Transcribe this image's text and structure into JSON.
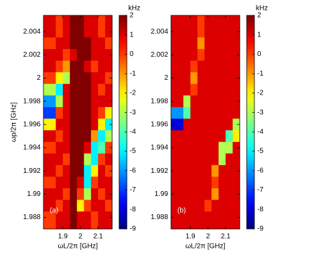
{
  "chart_data": [
    {
      "type": "heatmap",
      "panel_label": "(a)",
      "xlabel": "ωL/2π [GHz]",
      "ylabel": "ωp/2π [GHz]",
      "colorbar_label": "kHz",
      "colormap": "jet",
      "x": [
        1.84,
        1.88,
        1.92,
        1.96,
        2.0,
        2.04,
        2.08,
        2.12,
        2.16
      ],
      "y": [
        2.004,
        2.003,
        2.002,
        2.001,
        2.0,
        1.999,
        1.998,
        1.997,
        1.996,
        1.995,
        1.994,
        1.993,
        1.992,
        1.991,
        1.99,
        1.989,
        1.988
      ],
      "z": [
        [
          1,
          0,
          1,
          2,
          2,
          1,
          1,
          0,
          1
        ],
        [
          0,
          1,
          1,
          2,
          2,
          2,
          1,
          1,
          0
        ],
        [
          1,
          1,
          0,
          1,
          2,
          2,
          1,
          1,
          1
        ],
        [
          1,
          0,
          -1,
          2,
          2,
          1,
          0,
          1,
          1
        ],
        [
          0,
          -2,
          -3,
          2,
          2,
          2,
          1,
          1,
          0
        ],
        [
          -3,
          -5,
          1,
          2,
          2,
          2,
          1,
          0,
          1
        ],
        [
          -6,
          -3,
          1,
          2,
          2,
          2,
          1,
          1,
          1
        ],
        [
          -7,
          0,
          1,
          2,
          2,
          2,
          1,
          0,
          -2
        ],
        [
          -2,
          1,
          1,
          2,
          2,
          2,
          1,
          -2,
          -5
        ],
        [
          1,
          0,
          1,
          2,
          2,
          2,
          -1,
          -5,
          -3
        ],
        [
          0,
          1,
          1,
          2,
          2,
          1,
          -5,
          -4,
          0
        ],
        [
          1,
          1,
          0,
          2,
          2,
          -3,
          -5,
          0,
          1
        ],
        [
          1,
          0,
          1,
          2,
          2,
          -5,
          -2,
          1,
          0
        ],
        [
          0,
          1,
          1,
          2,
          1,
          -5,
          0,
          1,
          1
        ],
        [
          1,
          1,
          0,
          2,
          0,
          -3,
          1,
          0,
          1
        ],
        [
          1,
          0,
          1,
          2,
          -2,
          0,
          1,
          1,
          0
        ],
        [
          0,
          1,
          1,
          2,
          1,
          1,
          0,
          1,
          1
        ]
      ],
      "xlim": [
        1.79,
        2.18
      ],
      "ylim": [
        1.987,
        2.0054
      ],
      "xticks": [
        1.9,
        2,
        2.1
      ],
      "yticks": [
        2.004,
        2.002,
        2,
        1.998,
        1.996,
        1.994,
        1.992,
        1.99,
        1.988
      ],
      "clim": [
        -9,
        2
      ],
      "cticks": [
        2,
        1,
        0,
        -1,
        -2,
        -3,
        -4,
        -5,
        -6,
        -7,
        -8,
        -9
      ]
    },
    {
      "type": "heatmap",
      "panel_label": "(b)",
      "xlabel": "ωL/2π [GHz]",
      "colorbar_label": "kHz",
      "colormap": "jet",
      "x": [
        1.84,
        1.88,
        1.92,
        1.96,
        2.0,
        2.04,
        2.08,
        2.12,
        2.16
      ],
      "y": [
        2.004,
        2.003,
        2.002,
        2.001,
        2.0,
        1.999,
        1.998,
        1.997,
        1.996,
        1.995,
        1.994,
        1.993,
        1.992,
        1.991,
        1.99,
        1.989,
        1.988
      ],
      "z": [
        [
          1,
          1,
          1,
          0,
          1,
          1,
          1,
          1,
          1
        ],
        [
          1,
          1,
          1,
          -1,
          1,
          1,
          1,
          1,
          1
        ],
        [
          1,
          1,
          1,
          0,
          1,
          1,
          1,
          1,
          1
        ],
        [
          1,
          1,
          0,
          1,
          1,
          1,
          1,
          1,
          1
        ],
        [
          1,
          1,
          -1,
          1,
          1,
          1,
          1,
          1,
          1
        ],
        [
          1,
          1,
          0,
          1,
          1,
          1,
          1,
          1,
          1
        ],
        [
          1,
          -3,
          1,
          1,
          1,
          1,
          1,
          1,
          1
        ],
        [
          -6,
          -4,
          1,
          1,
          1,
          1,
          1,
          1,
          1
        ],
        [
          -8,
          1,
          1,
          1,
          1,
          1,
          1,
          1,
          -3
        ],
        [
          1,
          1,
          1,
          1,
          1,
          1,
          1,
          -4,
          -2
        ],
        [
          1,
          1,
          1,
          1,
          1,
          1,
          -3,
          -3,
          1
        ],
        [
          1,
          1,
          1,
          1,
          1,
          1,
          -3,
          1,
          1
        ],
        [
          1,
          1,
          1,
          1,
          1,
          -1,
          1,
          1,
          1
        ],
        [
          1,
          1,
          1,
          1,
          1,
          0,
          1,
          1,
          1
        ],
        [
          1,
          1,
          1,
          1,
          1,
          -1,
          1,
          1,
          1
        ],
        [
          1,
          1,
          1,
          1,
          0,
          1,
          1,
          1,
          1
        ],
        [
          1,
          1,
          1,
          1,
          1,
          1,
          1,
          1,
          1
        ]
      ],
      "xlim": [
        1.79,
        2.18
      ],
      "ylim": [
        1.987,
        2.0054
      ],
      "xticks": [
        1.9,
        2,
        2.1
      ],
      "yticks": [
        2.004,
        2.002,
        2,
        1.998,
        1.996,
        1.994,
        1.992,
        1.99,
        1.988
      ],
      "clim": [
        -9,
        2
      ],
      "cticks": [
        2,
        1,
        0,
        -1,
        -2,
        -3,
        -4,
        -5,
        -6,
        -7,
        -8,
        -9
      ]
    }
  ]
}
